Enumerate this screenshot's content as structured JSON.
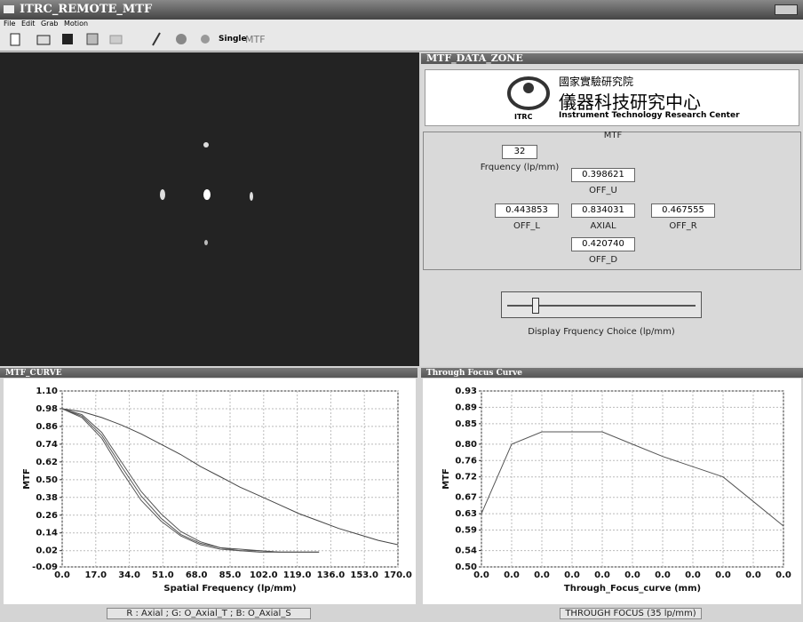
{
  "window": {
    "title": "ITRC_REMOTE_MTF",
    "menu": [
      "File",
      "Edit",
      "Grab",
      "Motion"
    ],
    "toolbar": [
      "Single",
      "MTF"
    ]
  },
  "data_zone": {
    "title": "MTF_DATA_ZONE",
    "logo": {
      "org": "國家實驗研究院",
      "center": "儀器科技研究中心",
      "english": "Instrument Technology Research Center",
      "short": "ITRC"
    },
    "group": "MTF",
    "frequency": "32",
    "frequency_label": "Frquency (lp/mm)",
    "fields": [
      {
        "value": "0.398621",
        "label": "OFF_U"
      },
      {
        "value": "0.443853",
        "label": "OFF_L"
      },
      {
        "value": "0.834031",
        "label": "AXIAL"
      },
      {
        "value": "0.467555",
        "label": "OFF_R"
      },
      {
        "value": "0.420740",
        "label": "OFF_D"
      }
    ],
    "slider_label": "Display Frquency  Choice (lp/mm)"
  },
  "chart_data": [
    {
      "type": "line",
      "title": "MTF_CURVE",
      "caption": "R : Axial  ; G: O_Axial_T ; B: O_Axial_S",
      "x_label": "Spatial Frequency (lp/mm)",
      "y_label": "MTF",
      "grid": true,
      "x": [
        0,
        10,
        20,
        30,
        40,
        50,
        60,
        70,
        80,
        90,
        100,
        110,
        120,
        130,
        140,
        150,
        160,
        170
      ],
      "xlim": [
        0,
        170
      ],
      "xticks": [
        {
          "value": 0,
          "label": "0.0"
        },
        {
          "value": 17,
          "label": "17.0"
        },
        {
          "value": 34,
          "label": "34.0"
        },
        {
          "value": 51,
          "label": "51.0"
        },
        {
          "value": 68,
          "label": "68.0"
        },
        {
          "value": 85,
          "label": "85.0"
        },
        {
          "value": 102,
          "label": "102.0"
        },
        {
          "value": 119,
          "label": "119.0"
        },
        {
          "value": 136,
          "label": "136.0"
        },
        {
          "value": 153,
          "label": "153.0"
        },
        {
          "value": 170,
          "label": "170.0"
        }
      ],
      "ylim": [
        -0.09,
        1.1
      ],
      "yticks": [
        -0.09,
        0.02,
        0.14,
        0.26,
        0.38,
        {
          "value": 0.5,
          "label": "0.50"
        },
        0.62,
        0.74,
        0.86,
        0.98,
        {
          "value": 1.1,
          "label": "1.10"
        }
      ],
      "series": [
        {
          "color": "#444444",
          "values": [
            0.98,
            0.96,
            0.92,
            0.87,
            0.81,
            0.74,
            0.67,
            0.59,
            0.52,
            0.45,
            0.39,
            0.33,
            0.27,
            0.22,
            0.17,
            0.13,
            0.09,
            0.06
          ]
        },
        {
          "color": "#555555",
          "values": [
            0.98,
            0.94,
            0.82,
            0.62,
            0.42,
            0.27,
            0.15,
            0.08,
            0.04,
            0.03,
            0.02,
            0.01,
            0.01,
            0.01,
            null,
            null,
            null,
            null
          ]
        },
        {
          "color": "#555555",
          "values": [
            0.98,
            0.93,
            0.8,
            0.59,
            0.39,
            0.24,
            0.13,
            0.07,
            0.04,
            0.02,
            0.02,
            0.01,
            0.01,
            0.01,
            null,
            null,
            null,
            null
          ]
        },
        {
          "color": "#555555",
          "values": [
            0.98,
            0.92,
            0.78,
            0.56,
            0.36,
            0.22,
            0.12,
            0.06,
            0.03,
            0.02,
            0.01,
            0.01,
            0.01,
            0.01,
            null,
            null,
            null,
            null
          ]
        }
      ]
    },
    {
      "type": "line",
      "title": "Through Focus Curve",
      "caption": "THROUGH FOCUS (35 lp/mm)",
      "x_label": "Through_Focus_curve (mm)",
      "y_label": "MTF",
      "grid": true,
      "color": "#555555",
      "categories": [
        "0.0",
        "0.0",
        "0.0",
        "0.0",
        "0.0",
        "0.0",
        "0.0",
        "0.0",
        "0.0",
        "0.0",
        "0.0"
      ],
      "values": [
        0.63,
        0.8,
        0.83,
        0.83,
        0.83,
        0.8,
        0.77,
        0.745,
        0.72,
        0.66,
        0.6
      ],
      "ylim": [
        0.5,
        0.93
      ],
      "yticks": [
        {
          "value": 0.5,
          "label": "0.50"
        },
        0.54,
        0.59,
        0.63,
        0.67,
        0.72,
        0.76,
        {
          "value": 0.8,
          "label": "0.80"
        },
        0.85,
        0.89,
        0.93
      ]
    }
  ]
}
